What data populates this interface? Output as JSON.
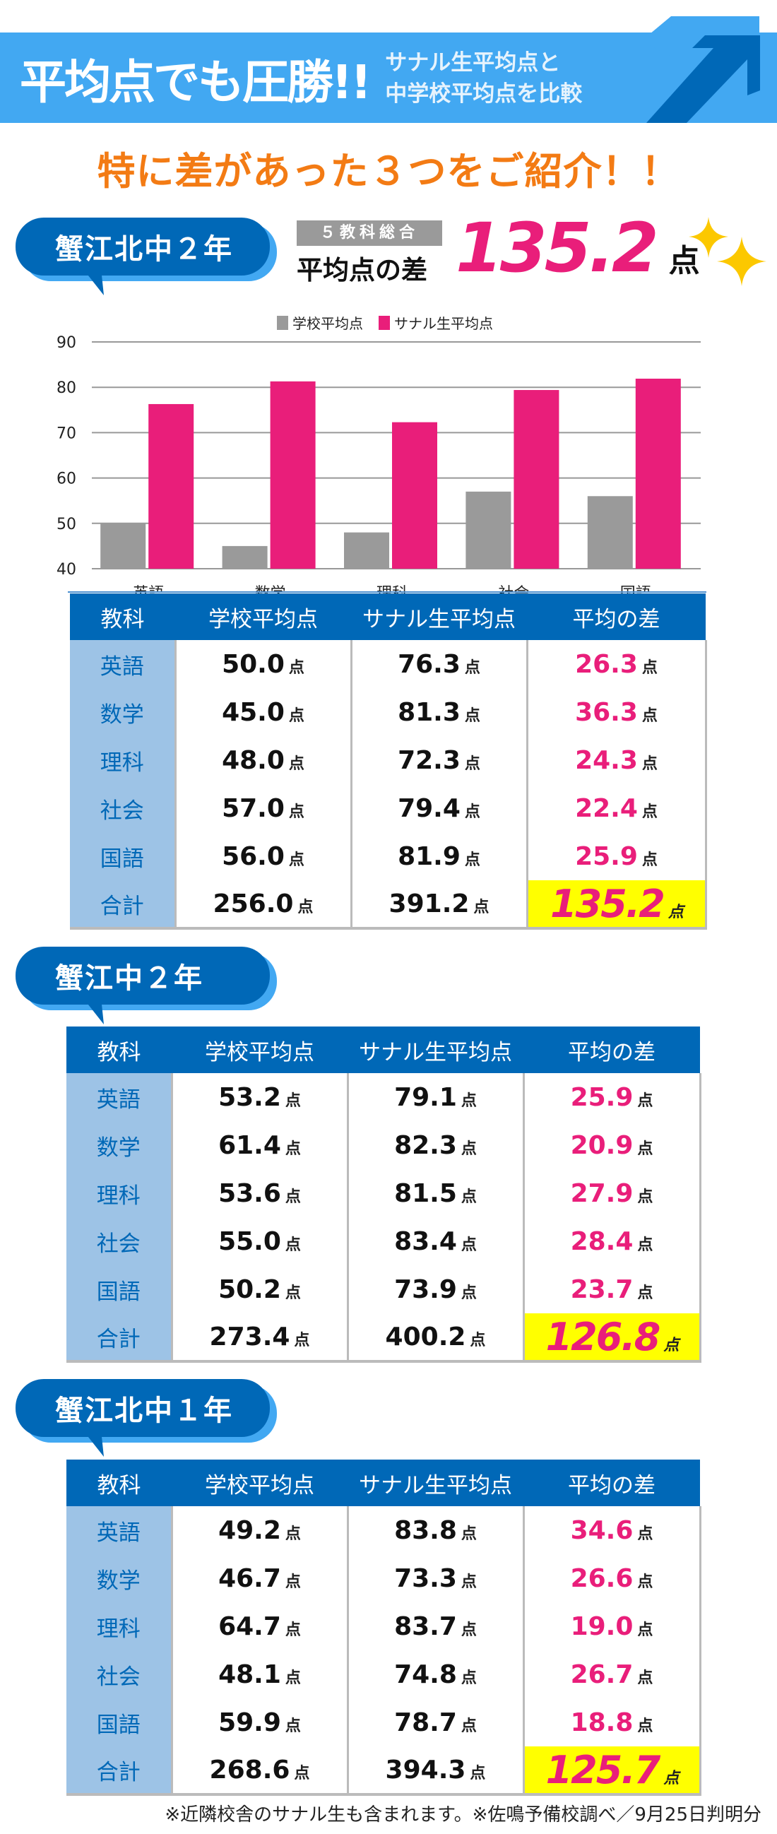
{
  "banner": {
    "title": "平均点でも圧勝!!",
    "subtitle_line1": "サナル生平均点と",
    "subtitle_line2": "中学校平均点を比較",
    "colors": {
      "banner": "#42a8f2",
      "arrow": "#0068b7"
    }
  },
  "heading": "特に差があった３つをご紹介！！",
  "summary": {
    "tag": "５教科総合",
    "label": "平均点の差",
    "value": "135.2",
    "unit": "点"
  },
  "columns": [
    "教科",
    "学校平均点",
    "サナル生平均点",
    "平均の差"
  ],
  "unit": "点",
  "schools": [
    {
      "name": "蟹江北中２年",
      "rows": [
        [
          "英語",
          "50.0",
          "76.3",
          "26.3"
        ],
        [
          "数学",
          "45.0",
          "81.3",
          "36.3"
        ],
        [
          "理科",
          "48.0",
          "72.3",
          "24.3"
        ],
        [
          "社会",
          "57.0",
          "79.4",
          "22.4"
        ],
        [
          "国語",
          "56.0",
          "81.9",
          "25.9"
        ],
        [
          "合計",
          "256.0",
          "391.2",
          "135.2"
        ]
      ]
    },
    {
      "name": "蟹江中２年",
      "rows": [
        [
          "英語",
          "53.2",
          "79.1",
          "25.9"
        ],
        [
          "数学",
          "61.4",
          "82.3",
          "20.9"
        ],
        [
          "理科",
          "53.6",
          "81.5",
          "27.9"
        ],
        [
          "社会",
          "55.0",
          "83.4",
          "28.4"
        ],
        [
          "国語",
          "50.2",
          "73.9",
          "23.7"
        ],
        [
          "合計",
          "273.4",
          "400.2",
          "126.8"
        ]
      ]
    },
    {
      "name": "蟹江北中１年",
      "rows": [
        [
          "英語",
          "49.2",
          "83.8",
          "34.6"
        ],
        [
          "数学",
          "46.7",
          "73.3",
          "26.6"
        ],
        [
          "理科",
          "64.7",
          "83.7",
          "19.0"
        ],
        [
          "社会",
          "48.1",
          "74.8",
          "26.7"
        ],
        [
          "国語",
          "59.9",
          "78.7",
          "18.8"
        ],
        [
          "合計",
          "268.6",
          "394.3",
          "125.7"
        ]
      ]
    }
  ],
  "chart_data": {
    "type": "bar",
    "categories": [
      "英語",
      "数学",
      "理科",
      "社会",
      "国語"
    ],
    "series": [
      {
        "name": "学校平均点",
        "values": [
          50.0,
          45.0,
          48.0,
          57.0,
          56.0
        ],
        "color": "#9a9a9a"
      },
      {
        "name": "サナル生平均点",
        "values": [
          76.3,
          81.3,
          72.3,
          79.4,
          81.9
        ],
        "color": "#e91e7a"
      }
    ],
    "ylim": [
      40,
      90
    ],
    "yticks": [
      "40",
      "50",
      "60",
      "70",
      "80",
      "90"
    ],
    "grid": true,
    "legend": "top-center"
  },
  "footnote": "※近隣校舎のサナル生も含まれます。※佐鳴予備校調べ／9月25日判明分"
}
